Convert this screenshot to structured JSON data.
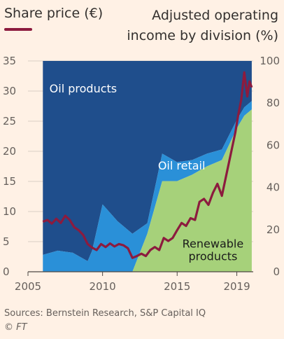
{
  "header": {
    "left_title": "Share price (€)",
    "right_title": "Adjusted operating income by division (%)"
  },
  "footer": {
    "source": "Sources: Bernstein Research, S&P Capital IQ",
    "credit": "© FT"
  },
  "colors": {
    "background": "#fff1e5",
    "oil_products": "#1f4e8c",
    "oil_retail": "#2a90d8",
    "renewable": "#a6d17a",
    "share_price": "#8c1b3e",
    "grid": "#d8cfc5"
  },
  "chart_data": {
    "type": "area",
    "xlim": [
      2005,
      2020.1
    ],
    "x_ticks": [
      "2005",
      "2010",
      "2015",
      "2019"
    ],
    "y_left": {
      "lim": [
        0,
        35
      ],
      "ticks": [
        "0",
        "5",
        "10",
        "15",
        "20",
        "25",
        "30",
        "35"
      ]
    },
    "y_right": {
      "lim": [
        0,
        100
      ],
      "ticks": [
        "0",
        "20",
        "40",
        "60",
        "80",
        "100"
      ]
    },
    "annotations": {
      "oil_products": "Oil products",
      "oil_retail": "Oil retail",
      "renewable_line1": "Renewable",
      "renewable_line2": "products"
    },
    "areas": {
      "x": [
        2006,
        2007,
        2008,
        2009,
        2009.3,
        2010,
        2011,
        2012,
        2013,
        2014,
        2015,
        2016,
        2017,
        2018,
        2019,
        2019.5,
        2020
      ],
      "renewable": [
        0,
        0,
        0,
        0,
        0,
        0,
        0,
        0,
        18,
        43,
        43,
        46,
        50,
        53,
        68,
        74,
        77
      ],
      "retail_top": [
        8,
        10,
        9,
        5,
        10,
        32,
        24,
        18,
        23,
        56,
        52,
        53,
        56,
        58,
        72,
        78,
        81
      ],
      "oil_products_top": [
        100,
        100,
        100,
        100,
        100,
        100,
        100,
        100,
        100,
        100,
        100,
        100,
        100,
        100,
        100,
        100,
        100
      ]
    },
    "series": [
      {
        "axis": "left",
        "x": [
          2006.0,
          2006.3,
          2006.6,
          2006.9,
          2007.2,
          2007.5,
          2007.8,
          2008.1,
          2008.4,
          2008.7,
          2009.0,
          2009.3,
          2009.6,
          2009.9,
          2010.2,
          2010.5,
          2010.8,
          2011.1,
          2011.4,
          2011.7,
          2012.0,
          2012.3,
          2012.6,
          2012.9,
          2013.2,
          2013.5,
          2013.8,
          2014.1,
          2014.4,
          2014.7,
          2015.0,
          2015.3,
          2015.6,
          2015.9,
          2016.2,
          2016.5,
          2016.8,
          2017.1,
          2017.4,
          2017.7,
          2018.0,
          2018.3,
          2018.6,
          2018.9,
          2019.1,
          2019.3,
          2019.5,
          2019.7,
          2019.85,
          2020.0
        ],
        "values": [
          8.3,
          8.6,
          8.0,
          8.8,
          8.1,
          9.3,
          8.6,
          7.4,
          6.9,
          6.1,
          4.6,
          4.0,
          3.6,
          4.6,
          4.1,
          4.7,
          4.2,
          4.6,
          4.4,
          3.9,
          2.3,
          2.6,
          3.0,
          2.6,
          3.6,
          4.1,
          3.6,
          5.6,
          5.1,
          5.6,
          6.9,
          8.1,
          7.6,
          8.9,
          8.6,
          11.6,
          12.1,
          11.1,
          13.1,
          14.6,
          12.6,
          16.1,
          19.6,
          23.1,
          26.1,
          28.6,
          33.1,
          29.1,
          31.6,
          30.6
        ]
      }
    ]
  }
}
